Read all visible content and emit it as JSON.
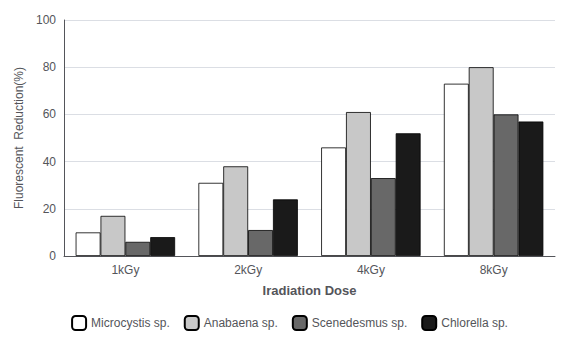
{
  "chart_data": {
    "type": "bar",
    "xlabel": "Iradiation Dose",
    "ylabel": "Fluorescent  Reduction(%)",
    "categories": [
      "1kGy",
      "2kGy",
      "4kGy",
      "8kGy"
    ],
    "series": [
      {
        "name": "Microcystis sp.",
        "color": "#ffffff",
        "values": [
          10,
          31,
          46,
          73
        ]
      },
      {
        "name": "Anabaena sp.",
        "color": "#c8c8c8",
        "values": [
          17,
          38,
          61,
          80
        ]
      },
      {
        "name": "Scenedesmus sp.",
        "color": "#686868",
        "values": [
          6,
          11,
          33,
          60
        ]
      },
      {
        "name": "Chlorella sp.",
        "color": "#1a1a1a",
        "values": [
          8,
          24,
          52,
          57
        ]
      }
    ],
    "ylim": [
      0,
      100
    ],
    "yticks": [
      0,
      20,
      40,
      60,
      80,
      100
    ],
    "grid": true,
    "legend": "bottom"
  }
}
